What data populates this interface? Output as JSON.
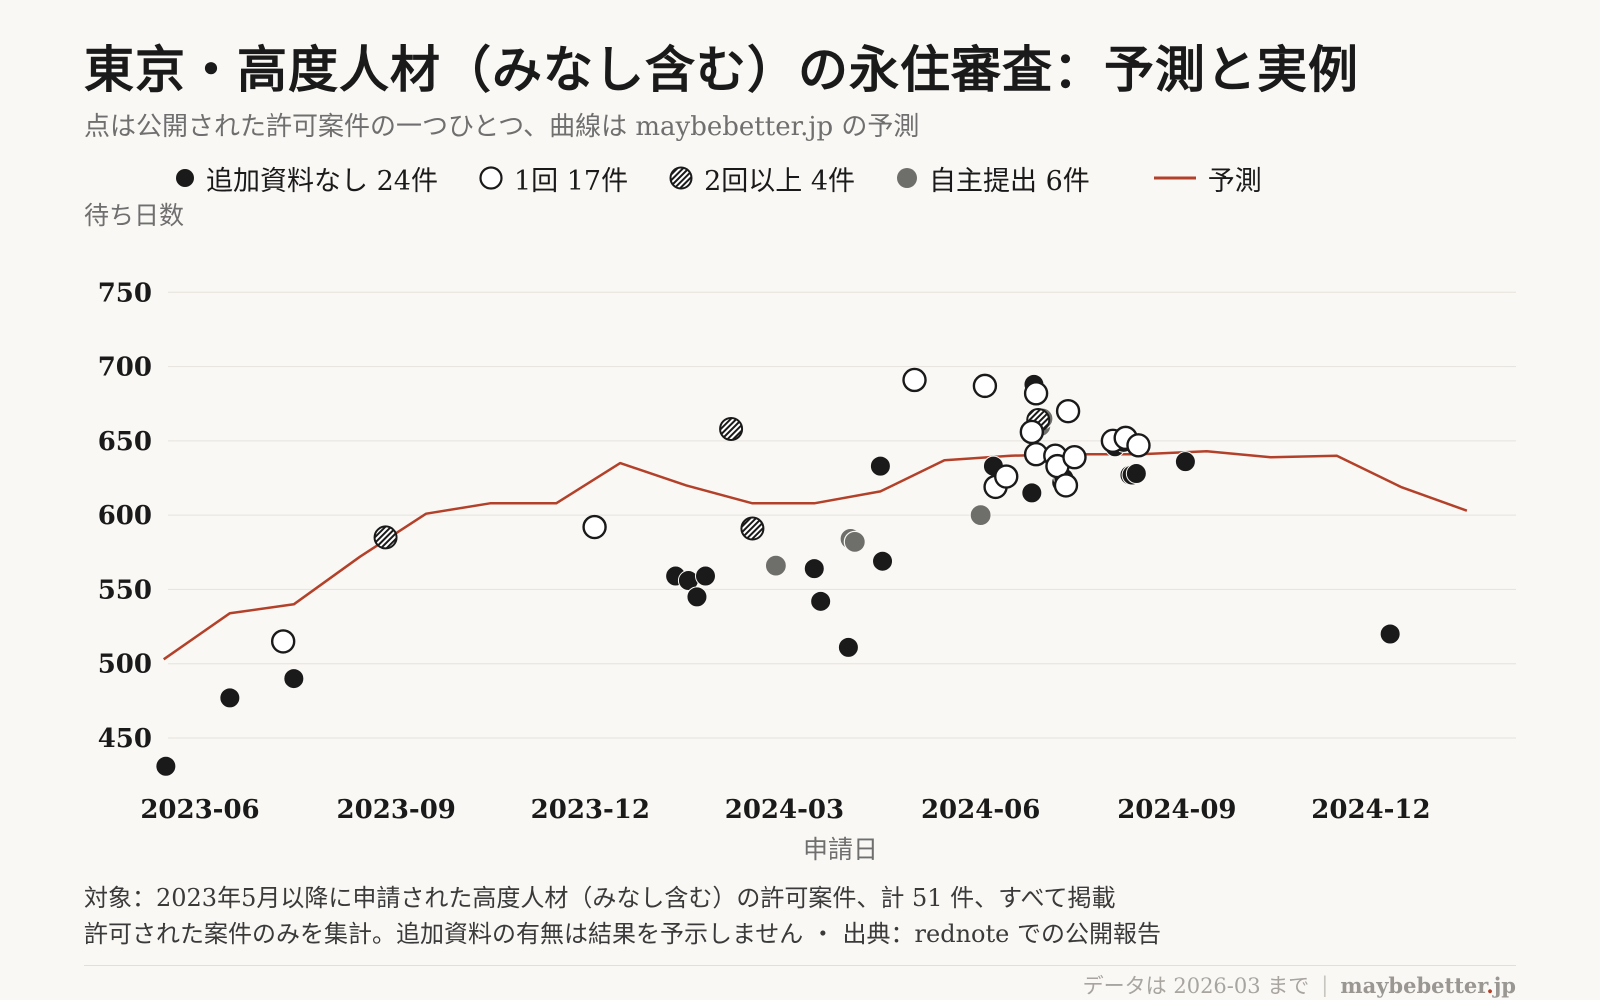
{
  "header": {
    "title": "東京・高度人材（みなし含む）の永住審査：予測と実例",
    "subtitle": "点は公開された許可案件の一つひとつ、曲線は maybebetter.jp の予測"
  },
  "legend": [
    {
      "label": "追加資料なし 24件",
      "style": "filled"
    },
    {
      "label": "1回 17件",
      "style": "open"
    },
    {
      "label": "2回以上 4件",
      "style": "hatched"
    },
    {
      "label": "自主提出 6件",
      "style": "gray"
    },
    {
      "label": "予測",
      "style": "line"
    }
  ],
  "notes": {
    "line1": "対象：2023年5月以降に申請された高度人材（みなし含む）の許可案件、計 51 件、すべて掲載",
    "line2": "許可された案件のみを集計。追加資料の有無は結果を予示しません ・ 出典：rednote での公開報告"
  },
  "footer": {
    "data_note": "データは 2026-03 まで",
    "separator": "|",
    "brand_main": "maybebetter",
    "brand_dot": ".",
    "brand_tld": "jp"
  },
  "colors": {
    "background": "#faf8f5",
    "filled": "#1a1a1a",
    "open_fill": "#ffffff",
    "gray": "#6e6e6a",
    "forecast": "#b3412a",
    "grid": "#e6e2dc"
  },
  "chart_data": {
    "type": "scatter",
    "ylabel": "待ち日数",
    "xlabel": "申請日",
    "ylim": [
      415,
      765
    ],
    "xlim": [
      "2023-05-17",
      "2025-02-07"
    ],
    "yticks": [
      450,
      500,
      550,
      600,
      650,
      700,
      750
    ],
    "xticks": [
      {
        "date": "2023-06-01",
        "label": "2023-06"
      },
      {
        "date": "2023-09-01",
        "label": "2023-09"
      },
      {
        "date": "2023-12-01",
        "label": "2023-12"
      },
      {
        "date": "2024-03-01",
        "label": "2024-03"
      },
      {
        "date": "2024-06-01",
        "label": "2024-06"
      },
      {
        "date": "2024-09-01",
        "label": "2024-09"
      },
      {
        "date": "2024-12-01",
        "label": "2024-12"
      }
    ],
    "grid": true,
    "legend_position": "top",
    "forecast": {
      "name": "予測",
      "points": [
        {
          "x": "2023-05-15",
          "y": 503
        },
        {
          "x": "2023-06-15",
          "y": 534
        },
        {
          "x": "2023-07-15",
          "y": 540
        },
        {
          "x": "2023-08-15",
          "y": 572
        },
        {
          "x": "2023-09-15",
          "y": 601
        },
        {
          "x": "2023-10-15",
          "y": 608
        },
        {
          "x": "2023-11-15",
          "y": 608
        },
        {
          "x": "2023-12-15",
          "y": 635
        },
        {
          "x": "2024-01-15",
          "y": 620
        },
        {
          "x": "2024-02-15",
          "y": 608
        },
        {
          "x": "2024-03-15",
          "y": 608
        },
        {
          "x": "2024-04-15",
          "y": 616
        },
        {
          "x": "2024-05-15",
          "y": 637
        },
        {
          "x": "2024-06-15",
          "y": 640
        },
        {
          "x": "2024-07-15",
          "y": 641
        },
        {
          "x": "2024-08-15",
          "y": 641
        },
        {
          "x": "2024-09-15",
          "y": 643
        },
        {
          "x": "2024-10-15",
          "y": 639
        },
        {
          "x": "2024-11-15",
          "y": 640
        },
        {
          "x": "2024-12-15",
          "y": 619
        },
        {
          "x": "2025-01-15",
          "y": 603
        }
      ]
    },
    "series": [
      {
        "name": "追加資料なし",
        "style": "filled",
        "points": [
          {
            "x": "2023-05-16",
            "y": 431
          },
          {
            "x": "2023-06-15",
            "y": 477
          },
          {
            "x": "2023-07-15",
            "y": 490
          },
          {
            "x": "2024-01-10",
            "y": 559
          },
          {
            "x": "2024-01-16",
            "y": 556
          },
          {
            "x": "2024-01-20",
            "y": 545
          },
          {
            "x": "2024-01-24",
            "y": 559
          },
          {
            "x": "2024-03-15",
            "y": 564
          },
          {
            "x": "2024-03-18",
            "y": 542
          },
          {
            "x": "2024-03-31",
            "y": 511
          },
          {
            "x": "2024-04-15",
            "y": 633
          },
          {
            "x": "2024-04-16",
            "y": 569
          },
          {
            "x": "2024-06-07",
            "y": 633
          },
          {
            "x": "2024-06-25",
            "y": 615
          },
          {
            "x": "2024-06-26",
            "y": 688
          },
          {
            "x": "2024-07-09",
            "y": 622
          },
          {
            "x": "2024-07-10",
            "y": 625
          },
          {
            "x": "2024-08-03",
            "y": 646
          },
          {
            "x": "2024-08-07",
            "y": 649
          },
          {
            "x": "2024-08-10",
            "y": 627
          },
          {
            "x": "2024-08-11",
            "y": 627
          },
          {
            "x": "2024-08-13",
            "y": 628
          },
          {
            "x": "2024-09-05",
            "y": 636
          },
          {
            "x": "2024-12-10",
            "y": 520
          }
        ]
      },
      {
        "name": "1回",
        "style": "open",
        "points": [
          {
            "x": "2023-07-10",
            "y": 515
          },
          {
            "x": "2023-12-03",
            "y": 592
          },
          {
            "x": "2024-05-01",
            "y": 691
          },
          {
            "x": "2024-06-03",
            "y": 687
          },
          {
            "x": "2024-06-08",
            "y": 619
          },
          {
            "x": "2024-06-13",
            "y": 626
          },
          {
            "x": "2024-06-25",
            "y": 656
          },
          {
            "x": "2024-06-27",
            "y": 682
          },
          {
            "x": "2024-06-27",
            "y": 641
          },
          {
            "x": "2024-07-06",
            "y": 640
          },
          {
            "x": "2024-07-07",
            "y": 633
          },
          {
            "x": "2024-07-11",
            "y": 620
          },
          {
            "x": "2024-07-12",
            "y": 670
          },
          {
            "x": "2024-07-15",
            "y": 639
          },
          {
            "x": "2024-08-02",
            "y": 650
          },
          {
            "x": "2024-08-08",
            "y": 652
          },
          {
            "x": "2024-08-14",
            "y": 647
          }
        ]
      },
      {
        "name": "2回以上",
        "style": "hatched",
        "points": [
          {
            "x": "2023-08-27",
            "y": 585
          },
          {
            "x": "2024-02-05",
            "y": 658
          },
          {
            "x": "2024-02-15",
            "y": 591
          },
          {
            "x": "2024-06-28",
            "y": 664
          }
        ]
      },
      {
        "name": "自主提出",
        "style": "gray",
        "points": [
          {
            "x": "2024-02-26",
            "y": 566
          },
          {
            "x": "2024-04-01",
            "y": 584
          },
          {
            "x": "2024-04-03",
            "y": 582
          },
          {
            "x": "2024-06-01",
            "y": 600
          },
          {
            "x": "2024-06-29",
            "y": 660
          },
          {
            "x": "2024-06-30",
            "y": 665
          }
        ]
      }
    ]
  }
}
